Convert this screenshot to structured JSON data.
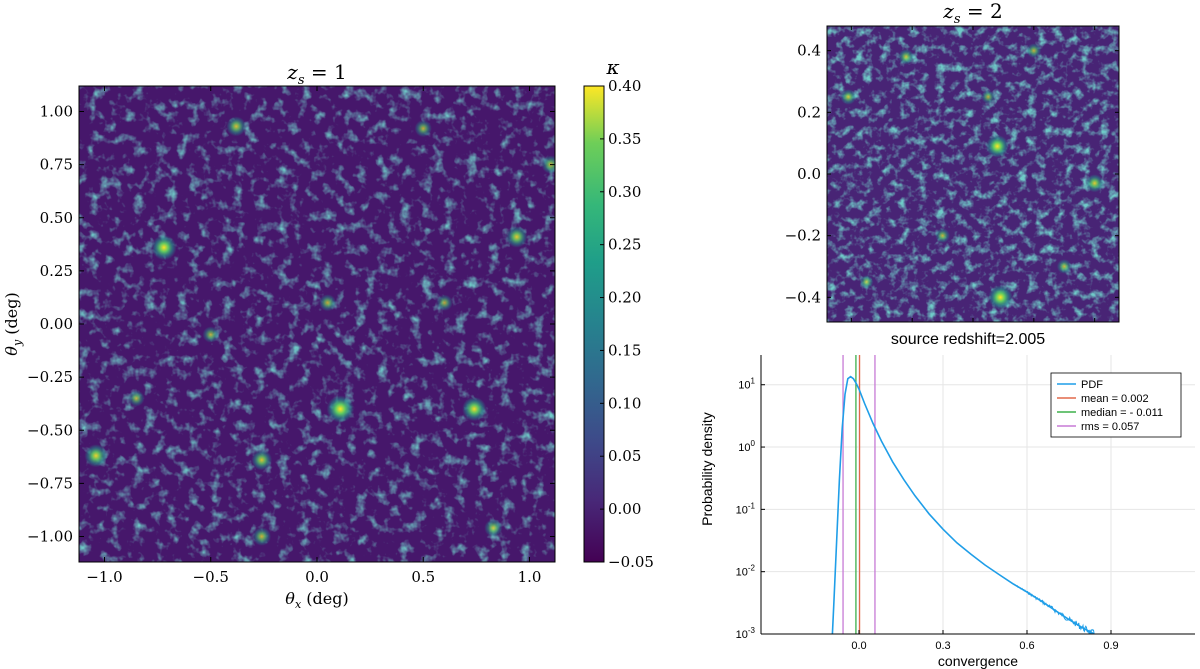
{
  "chart_data": [
    {
      "type": "heatmap",
      "panel": "main-convergence-map",
      "title_var": "z",
      "title_sub": "s",
      "title_rest": " = 1",
      "xlabel_var": "θ",
      "xlabel_sub": "x",
      "xlabel_unit": " (deg)",
      "ylabel_var": "θ",
      "ylabel_sub": "y",
      "ylabel_unit": " (deg)",
      "xlim": [
        -1.12,
        1.12
      ],
      "ylim": [
        -1.12,
        1.12
      ],
      "xticks": [
        -1.0,
        -0.5,
        0.0,
        0.5,
        1.0
      ],
      "xtick_labels": [
        "−1.0",
        "−0.5",
        "0.0",
        "0.5",
        "1.0"
      ],
      "yticks": [
        1.0,
        0.75,
        0.5,
        0.25,
        0.0,
        -0.25,
        -0.5,
        -0.75,
        -1.0
      ],
      "ytick_labels": [
        "1.00",
        "0.75",
        "0.50",
        "0.25",
        "0.00",
        "−0.25",
        "−0.50",
        "−0.75",
        "−1.00"
      ],
      "colorbar": {
        "label": "κ",
        "range": [
          -0.05,
          0.4
        ],
        "ticks": [
          0.4,
          0.35,
          0.3,
          0.25,
          0.2,
          0.15,
          0.1,
          0.05,
          0.0,
          -0.05
        ],
        "tick_labels": [
          "0.40",
          "0.35",
          "0.30",
          "0.25",
          "0.20",
          "0.15",
          "0.10",
          "0.05",
          "0.00",
          "−0.05"
        ],
        "colormap": "viridis"
      },
      "peaks": [
        {
          "x": -0.72,
          "y": 0.36,
          "kappa": 0.3
        },
        {
          "x": 0.94,
          "y": 0.41,
          "kappa": 0.22
        },
        {
          "x": 0.11,
          "y": -0.4,
          "kappa": 0.35
        },
        {
          "x": 0.74,
          "y": -0.4,
          "kappa": 0.28
        },
        {
          "x": -1.04,
          "y": -0.62,
          "kappa": 0.25
        },
        {
          "x": -0.26,
          "y": -0.64,
          "kappa": 0.2
        },
        {
          "x": -0.38,
          "y": 0.93,
          "kappa": 0.18
        },
        {
          "x": -0.26,
          "y": -1.0,
          "kappa": 0.15
        },
        {
          "x": 0.5,
          "y": 0.92,
          "kappa": 0.12
        },
        {
          "x": 1.1,
          "y": 0.75,
          "kappa": 0.15
        },
        {
          "x": 0.83,
          "y": -0.96,
          "kappa": 0.14
        },
        {
          "x": 0.05,
          "y": 0.1,
          "kappa": 0.12
        },
        {
          "x": -0.5,
          "y": -0.05,
          "kappa": 0.1
        },
        {
          "x": 0.6,
          "y": 0.1,
          "kappa": 0.1
        },
        {
          "x": -0.85,
          "y": -0.35,
          "kappa": 0.1
        }
      ]
    },
    {
      "type": "heatmap",
      "panel": "inset-convergence-map",
      "title_var": "z",
      "title_sub": "s",
      "title_rest": " = 2",
      "xlim": [
        -0.48,
        0.48
      ],
      "ylim": [
        -0.48,
        0.48
      ],
      "yticks": [
        0.4,
        0.2,
        0.0,
        -0.2,
        -0.4
      ],
      "ytick_labels": [
        "0.4",
        "0.2",
        "0.0",
        "−0.2",
        "−0.4"
      ],
      "colormap": "viridis",
      "peaks": [
        {
          "x": 0.08,
          "y": 0.09,
          "kappa": 0.4
        },
        {
          "x": 0.09,
          "y": -0.4,
          "kappa": 0.45
        },
        {
          "x": 0.4,
          "y": -0.03,
          "kappa": 0.25
        },
        {
          "x": -0.22,
          "y": 0.38,
          "kappa": 0.18
        },
        {
          "x": -0.41,
          "y": 0.25,
          "kappa": 0.18
        },
        {
          "x": 0.2,
          "y": 0.4,
          "kappa": 0.15
        },
        {
          "x": -0.1,
          "y": -0.2,
          "kappa": 0.15
        },
        {
          "x": 0.3,
          "y": -0.3,
          "kappa": 0.15
        },
        {
          "x": -0.35,
          "y": -0.35,
          "kappa": 0.12
        },
        {
          "x": 0.05,
          "y": 0.25,
          "kappa": 0.12
        }
      ]
    },
    {
      "type": "line",
      "panel": "convergence-pdf",
      "title": "source redshift=2.005",
      "xlabel": "convergence",
      "ylabel": "Probability density",
      "yscale": "log",
      "xlim": [
        -0.35,
        1.2
      ],
      "ylim": [
        0.001,
        30
      ],
      "xticks": [
        0.0,
        0.3,
        0.6,
        0.9
      ],
      "xtick_labels": [
        "0.0",
        "0.3",
        "0.6",
        "0.9"
      ],
      "ytick_labels": [
        {
          "value": 10,
          "base": "10",
          "exp": "1"
        },
        {
          "value": 1,
          "base": "10",
          "exp": "0"
        },
        {
          "value": 0.1,
          "base": "10",
          "exp": "-1"
        },
        {
          "value": 0.01,
          "base": "10",
          "exp": "-2"
        },
        {
          "value": 0.001,
          "base": "10",
          "exp": "-3"
        }
      ],
      "series": [
        {
          "name": "PDF",
          "color": "#1f9ee8",
          "x": [
            -0.095,
            -0.09,
            -0.08,
            -0.07,
            -0.06,
            -0.05,
            -0.04,
            -0.03,
            -0.02,
            -0.01,
            0.0,
            0.02,
            0.05,
            0.08,
            0.12,
            0.16,
            0.2,
            0.25,
            0.3,
            0.35,
            0.4,
            0.45,
            0.5,
            0.55,
            0.6,
            0.65,
            0.7,
            0.75,
            0.8,
            0.84
          ],
          "y": [
            0.001,
            0.003,
            0.03,
            0.3,
            2.0,
            7.0,
            12.5,
            13.5,
            12.5,
            10.5,
            8.5,
            5.0,
            2.4,
            1.25,
            0.58,
            0.3,
            0.165,
            0.085,
            0.048,
            0.029,
            0.019,
            0.0128,
            0.009,
            0.0064,
            0.0047,
            0.0034,
            0.0024,
            0.0017,
            0.00125,
            0.001
          ]
        }
      ],
      "vlines": [
        {
          "name": "mean = 0.002",
          "x": 0.002,
          "color": "#e2694a"
        },
        {
          "name": "median = - 0.011",
          "x": -0.011,
          "color": "#3db04a"
        },
        {
          "name": "rms = 0.057",
          "x": -0.057,
          "color": "#c77ad6"
        },
        {
          "name": "rms = 0.057",
          "x": 0.057,
          "color": "#c77ad6"
        }
      ],
      "legend": {
        "position": "top-right",
        "entries": [
          {
            "label": "PDF",
            "color": "#1f9ee8"
          },
          {
            "label": "mean = 0.002",
            "color": "#e2694a"
          },
          {
            "label": "median = - 0.011",
            "color": "#3db04a"
          },
          {
            "label": "rms = 0.057",
            "color": "#c77ad6"
          }
        ]
      }
    }
  ]
}
